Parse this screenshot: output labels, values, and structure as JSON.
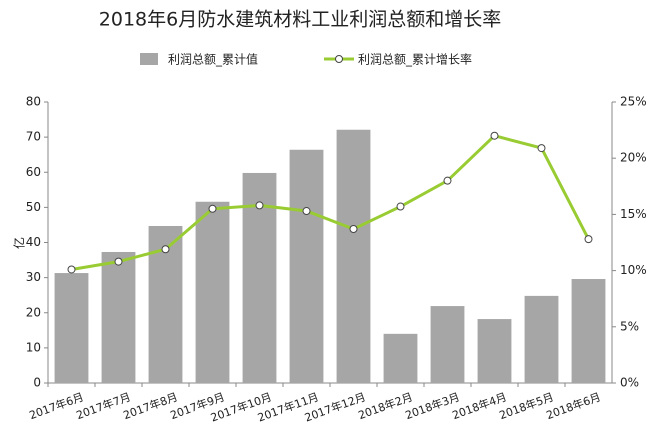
{
  "chart_data": {
    "type": "bar-line",
    "title": "2018年6月防水建筑材料工业利润总额和增长率",
    "y_label": "亿",
    "categories": [
      "2017年6月",
      "2017年7月",
      "2017年8月",
      "2017年9月",
      "2017年10月",
      "2017年11月",
      "2017年12月",
      "2018年2月",
      "2018年3月",
      "2018年4月",
      "2018年5月",
      "2018年6月"
    ],
    "series": [
      {
        "name": "利润总额_累计值",
        "type": "bar",
        "color": "#a6a6a6",
        "values": [
          31.3,
          37.3,
          44.7,
          51.6,
          59.8,
          66.4,
          72.1,
          14.0,
          21.9,
          18.2,
          24.8,
          29.6
        ]
      },
      {
        "name": "利润总额_累计增长率",
        "type": "line",
        "axis": "y2",
        "color": "#99cc33",
        "values": [
          10.1,
          10.8,
          11.9,
          15.5,
          15.8,
          15.3,
          13.7,
          15.7,
          18.0,
          22.0,
          20.9,
          12.8
        ]
      }
    ],
    "ylim": [
      0,
      80
    ],
    "yticks": [
      0,
      10,
      20,
      30,
      40,
      50,
      60,
      70,
      80
    ],
    "y2lim": [
      0,
      25
    ],
    "y2ticks": [
      {
        "value": 0,
        "label": "0%"
      },
      {
        "value": 5,
        "label": "5%"
      },
      {
        "value": 10,
        "label": "10%"
      },
      {
        "value": 15,
        "label": "15%"
      },
      {
        "value": 20,
        "label": "20%"
      },
      {
        "value": 25,
        "label": "25%"
      }
    ]
  }
}
